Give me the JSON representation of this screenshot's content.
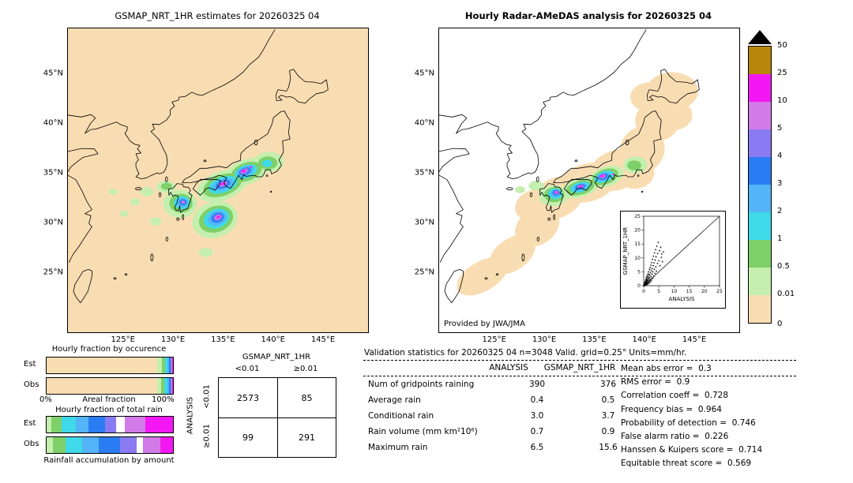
{
  "chart_data": [
    {
      "type": "map",
      "title": "GSMAP_NRT_1HR estimates for 20260325 04",
      "lat_ticks": [
        "45°N",
        "40°N",
        "35°N",
        "30°N",
        "25°N"
      ],
      "lon_ticks": [
        "125°E",
        "130°E",
        "135°E",
        "140°E",
        "145°E"
      ]
    },
    {
      "type": "map",
      "title": "Hourly Radar-AMeDAS analysis for 20260325 04",
      "credit": "Provided by JWA/JMA",
      "lat_ticks": [
        "45°N",
        "40°N",
        "35°N",
        "30°N",
        "25°N"
      ],
      "lon_ticks": [
        "125°E",
        "130°E",
        "135°E",
        "140°E",
        "145°E"
      ],
      "inset": {
        "type": "scatter",
        "xlabel": "ANALYSIS",
        "ylabel": "GSMAP_NRT_1HR",
        "xlim": [
          0,
          25
        ],
        "ylim": [
          0,
          25
        ],
        "ticks": [
          "0",
          "5",
          "10",
          "15",
          "20",
          "25"
        ],
        "points": [
          [
            0.1,
            0.1
          ],
          [
            0.15,
            0.3
          ],
          [
            0.2,
            0.1
          ],
          [
            0.2,
            0.5
          ],
          [
            0.25,
            0.2
          ],
          [
            0.3,
            0.8
          ],
          [
            0.3,
            0.3
          ],
          [
            0.35,
            0.1
          ],
          [
            0.4,
            0.6
          ],
          [
            0.4,
            1.2
          ],
          [
            0.45,
            0.3
          ],
          [
            0.5,
            0.2
          ],
          [
            0.5,
            0.9
          ],
          [
            0.55,
            1.5
          ],
          [
            0.6,
            0.4
          ],
          [
            0.6,
            1.1
          ],
          [
            0.65,
            2.0
          ],
          [
            0.7,
            0.5
          ],
          [
            0.7,
            1.6
          ],
          [
            0.75,
            0.9
          ],
          [
            0.8,
            0.3
          ],
          [
            0.8,
            2.4
          ],
          [
            0.85,
            1.2
          ],
          [
            0.9,
            0.6
          ],
          [
            0.9,
            3.0
          ],
          [
            0.95,
            1.8
          ],
          [
            1.0,
            0.8
          ],
          [
            1.0,
            2.2
          ],
          [
            1.05,
            1.3
          ],
          [
            1.1,
            3.6
          ],
          [
            1.15,
            0.5
          ],
          [
            1.2,
            1.9
          ],
          [
            1.25,
            2.8
          ],
          [
            1.3,
            0.9
          ],
          [
            1.35,
            4.2
          ],
          [
            1.4,
            1.5
          ],
          [
            1.45,
            2.3
          ],
          [
            1.5,
            0.7
          ],
          [
            1.5,
            3.3
          ],
          [
            1.6,
            5.0
          ],
          [
            1.65,
            1.2
          ],
          [
            1.7,
            2.6
          ],
          [
            1.75,
            4.0
          ],
          [
            1.8,
            1.8
          ],
          [
            1.9,
            5.8
          ],
          [
            1.95,
            2.9
          ],
          [
            2.0,
            1.1
          ],
          [
            2.0,
            3.8
          ],
          [
            2.1,
            6.5
          ],
          [
            2.15,
            2.2
          ],
          [
            2.2,
            4.6
          ],
          [
            2.3,
            1.6
          ],
          [
            2.35,
            7.4
          ],
          [
            2.4,
            3.2
          ],
          [
            2.5,
            5.4
          ],
          [
            2.55,
            2.0
          ],
          [
            2.6,
            8.3
          ],
          [
            2.7,
            4.1
          ],
          [
            2.8,
            6.2
          ],
          [
            2.9,
            9.5
          ],
          [
            3.0,
            2.6
          ],
          [
            3.0,
            5.0
          ],
          [
            3.1,
            7.2
          ],
          [
            3.2,
            10.6
          ],
          [
            3.3,
            3.4
          ],
          [
            3.4,
            8.2
          ],
          [
            3.5,
            5.9
          ],
          [
            3.6,
            11.8
          ],
          [
            3.7,
            4.4
          ],
          [
            3.8,
            9.2
          ],
          [
            3.9,
            13.0
          ],
          [
            4.0,
            6.8
          ],
          [
            4.1,
            10.4
          ],
          [
            4.2,
            5.2
          ],
          [
            4.3,
            14.2
          ],
          [
            4.5,
            8.0
          ],
          [
            4.6,
            11.6
          ],
          [
            4.8,
            15.6
          ],
          [
            5.0,
            9.0
          ],
          [
            5.2,
            12.6
          ],
          [
            5.4,
            7.2
          ],
          [
            5.6,
            13.8
          ],
          [
            5.8,
            10.2
          ],
          [
            6.0,
            11.4
          ],
          [
            6.2,
            8.6
          ],
          [
            6.5,
            12.2
          ]
        ]
      }
    },
    {
      "type": "bar",
      "title": "Hourly fraction by occurence",
      "xlabel": "Areal fraction",
      "x_min_label": "0%",
      "x_max_label": "100%",
      "rows": [
        "Est",
        "Obs"
      ],
      "series": [
        {
          "name": "Est",
          "segments": [
            [
              "#f9ddb2",
              87.7
            ],
            [
              "#c4efae",
              3.6
            ],
            [
              "#7ed069",
              2.4
            ],
            [
              "#3fd9e9",
              1.9
            ],
            [
              "#53b4f8",
              1.5
            ],
            [
              "#2b7cf2",
              1.2
            ],
            [
              "#8b7bf2",
              0.7
            ],
            [
              "#d27ae8",
              0.6
            ],
            [
              "#f318f3",
              0.4
            ]
          ]
        },
        {
          "name": "Obs",
          "segments": [
            [
              "#f9ddb2",
              87.2
            ],
            [
              "#c4efae",
              3.7
            ],
            [
              "#7ed069",
              2.5
            ],
            [
              "#3fd9e9",
              2.0
            ],
            [
              "#53b4f8",
              1.6
            ],
            [
              "#2b7cf2",
              1.3
            ],
            [
              "#8b7bf2",
              0.7
            ],
            [
              "#d27ae8",
              0.6
            ],
            [
              "#f318f3",
              0.4
            ]
          ]
        }
      ]
    },
    {
      "type": "bar",
      "title": "Hourly fraction of total rain",
      "caption": "Rainfall accumulation by amount",
      "rows": [
        "Est",
        "Obs"
      ],
      "series": [
        {
          "name": "Est",
          "segments": [
            [
              "#c4efae",
              4
            ],
            [
              "#7ed069",
              8
            ],
            [
              "#3fd9e9",
              11
            ],
            [
              "#53b4f8",
              10
            ],
            [
              "#2b7cf2",
              13
            ],
            [
              "#8b7bf2",
              9
            ],
            [
              "#ffffff",
              7
            ],
            [
              "#d27ae8",
              16
            ],
            [
              "#f318f3",
              22
            ]
          ]
        },
        {
          "name": "Obs",
          "segments": [
            [
              "#c4efae",
              5
            ],
            [
              "#7ed069",
              10
            ],
            [
              "#3fd9e9",
              13
            ],
            [
              "#53b4f8",
              13
            ],
            [
              "#2b7cf2",
              17
            ],
            [
              "#8b7bf2",
              13
            ],
            [
              "#ffffff",
              5
            ],
            [
              "#d27ae8",
              14
            ],
            [
              "#f318f3",
              10
            ]
          ]
        }
      ]
    },
    {
      "type": "table",
      "name": "contingency",
      "col_group": "GSMAP_NRT_1HR",
      "row_group": "ANALYSIS",
      "col_labels": [
        "<0.01",
        "≥0.01"
      ],
      "row_labels": [
        "<0.01",
        "≥0.01"
      ],
      "values": [
        [
          "2573",
          "85"
        ],
        [
          "99",
          "291"
        ]
      ]
    },
    {
      "type": "table",
      "name": "validation-statistics",
      "title": "Validation statistics for 20260325 04 n=3048 Valid. grid=0.25° Units=mm/hr.",
      "columns": [
        "ANALYSIS",
        "GSMAP_NRT_1HR"
      ],
      "rows": [
        {
          "label": "Num of gridpoints raining",
          "values": [
            "390",
            "376"
          ]
        },
        {
          "label": "Average rain",
          "values": [
            "0.4",
            "0.5"
          ]
        },
        {
          "label": "Conditional rain",
          "values": [
            "3.0",
            "3.7"
          ]
        },
        {
          "label": "Rain volume (mm km²10⁶)",
          "values": [
            "0.7",
            "0.9"
          ]
        },
        {
          "label": "Maximum rain",
          "values": [
            "6.5",
            "15.6"
          ]
        }
      ],
      "metrics": [
        {
          "label": "Mean abs error",
          "value": "0.3"
        },
        {
          "label": "RMS error",
          "value": "0.9"
        },
        {
          "label": "Correlation coeff",
          "value": "0.728"
        },
        {
          "label": "Frequency bias",
          "value": "0.964"
        },
        {
          "label": "Probability of detection",
          "value": "0.746"
        },
        {
          "label": "False alarm ratio",
          "value": "0.226"
        },
        {
          "label": "Hanssen & Kuipers score",
          "value": "0.714"
        },
        {
          "label": "Equitable threat score",
          "value": "0.569"
        }
      ]
    },
    {
      "type": "colorbar",
      "boundary_labels": [
        "50",
        "25",
        "10",
        "5",
        "4",
        "3",
        "2",
        "1",
        "0.5",
        "0.01",
        "0"
      ],
      "segment_colors": [
        "#b8860b",
        "#f318f3",
        "#d27ae8",
        "#8b7bf2",
        "#2b7cf2",
        "#53b4f8",
        "#3fd9e9",
        "#7ed069",
        "#c4efae",
        "#f9ddb2"
      ],
      "overflow_arrow_color": "#000000"
    }
  ]
}
